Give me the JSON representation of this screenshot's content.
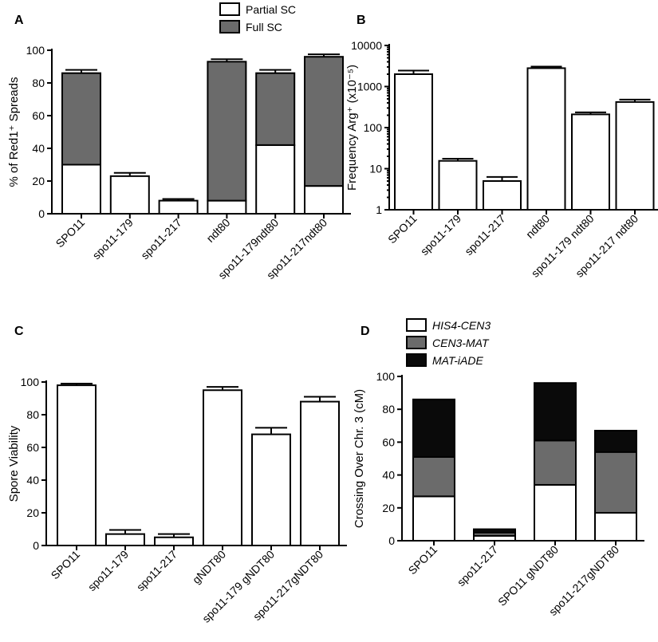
{
  "panels": [
    {
      "letter": "A",
      "chart_data": {
        "type": "bar",
        "stacked": true,
        "categories": [
          "SPO11",
          "spo11-179",
          "spo11-217",
          "ndt80",
          "spo11-179ndt80",
          "spo11-217ndt80"
        ],
        "series": [
          {
            "name": "Partial SC",
            "color": "#ffffff",
            "values": [
              30,
              23,
              8,
              8,
              42,
              17
            ],
            "errors": [
              2,
              2,
              1,
              1,
              2,
              2
            ]
          },
          {
            "name": "Full SC",
            "color": "#6b6b6b",
            "values": [
              56,
              0,
              0,
              85,
              44,
              79
            ],
            "errors": [
              2,
              0,
              0,
              1.5,
              2,
              1.5
            ]
          }
        ],
        "ylabel": "% of Red1⁺ Spreads",
        "ylim": [
          0,
          100
        ],
        "yticks": [
          0,
          20,
          40,
          60,
          80,
          100
        ],
        "scale": "linear",
        "legend": "top"
      }
    },
    {
      "letter": "B",
      "chart_data": {
        "type": "bar",
        "categories": [
          "SPO11",
          "spo11-179",
          "spo11-217",
          "ndt80",
          "spo11-179 ndt80",
          "spo11-217 ndt80"
        ],
        "series": [
          {
            "color": "#ffffff",
            "values": [
              2000,
              15.5,
              5,
              2800,
              210,
              420
            ],
            "errors": [
              450,
              2,
              1.3,
              250,
              25,
              60
            ]
          }
        ],
        "ylabel": "Frequency Arg⁺ (x10⁻⁵)",
        "ylim": [
          1,
          10000
        ],
        "yticks": [
          1,
          10,
          100,
          1000,
          10000
        ],
        "scale": "log"
      }
    },
    {
      "letter": "C",
      "chart_data": {
        "type": "bar",
        "categories": [
          "SPO11",
          "spo11-179",
          "spo11-217",
          "gNDT80",
          "spo11-179 gNDT80",
          "spo11-217gNDT80"
        ],
        "series": [
          {
            "color": "#ffffff",
            "values": [
              98,
              7,
              5,
              95,
              68,
              88
            ],
            "errors": [
              1,
              2.5,
              2,
              2,
              4,
              3
            ]
          }
        ],
        "ylabel": "Spore Viability",
        "ylim": [
          0,
          100
        ],
        "yticks": [
          0,
          20,
          40,
          60,
          80,
          100
        ],
        "scale": "linear"
      }
    },
    {
      "letter": "D",
      "chart_data": {
        "type": "bar",
        "stacked": true,
        "categories": [
          "SPO11",
          "spo11-217",
          "SPO11 gNDT80",
          "spo11-217gNDT80"
        ],
        "series": [
          {
            "name": "HIS4-CEN3",
            "color": "#ffffff",
            "values": [
              27,
              3,
              34,
              17
            ]
          },
          {
            "name": "CEN3-MAT",
            "color": "#6b6b6b",
            "values": [
              24,
              2,
              27,
              37
            ]
          },
          {
            "name": "MAT-iADE",
            "color": "#0a0a0a",
            "values": [
              35,
              2,
              35,
              13
            ]
          }
        ],
        "ylabel": "Crossing Over Chr. 3 (cM)",
        "ylim": [
          0,
          100
        ],
        "yticks": [
          0,
          20,
          40,
          60,
          80,
          100
        ],
        "scale": "linear",
        "legend": "top",
        "legend_italic": true
      }
    }
  ]
}
